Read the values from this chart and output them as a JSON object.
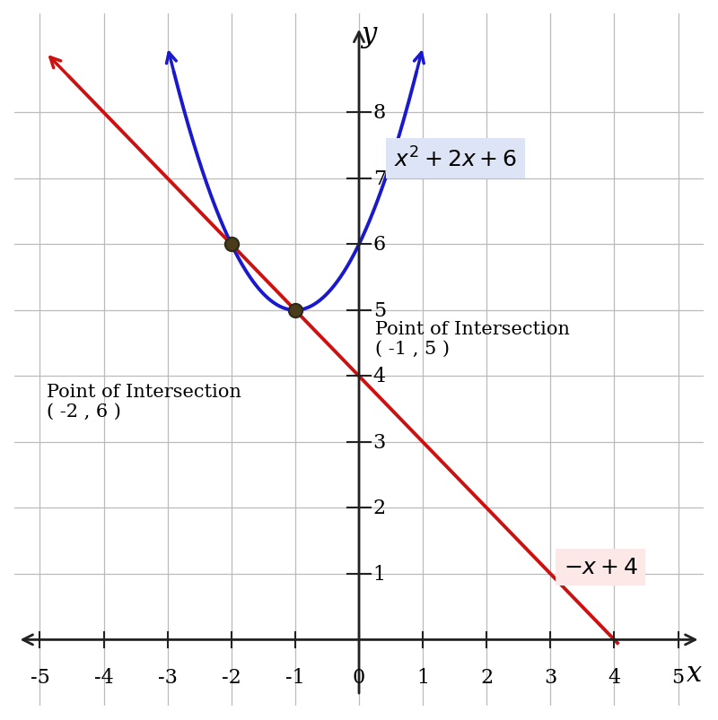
{
  "xlim": [
    -5.4,
    5.4
  ],
  "ylim": [
    -1.0,
    9.5
  ],
  "xdata_lim": [
    -5,
    5
  ],
  "ydata_lim": [
    0,
    9
  ],
  "xticks": [
    -5,
    -4,
    -3,
    -2,
    -1,
    0,
    1,
    2,
    3,
    4,
    5
  ],
  "yticks": [
    1,
    2,
    3,
    4,
    5,
    6,
    7,
    8
  ],
  "xlabel": "x",
  "ylabel": "y",
  "parabola_color": "#1a1acc",
  "line_color": "#cc1111",
  "intersection_color": "#4a3c1a",
  "intersection_edge_color": "#2a2a1a",
  "intersection_points": [
    [
      -2,
      6
    ],
    [
      -1,
      5
    ]
  ],
  "parabola_label": "$x^2 + 2x + 6$",
  "line_label": "$-x + 4$",
  "poi_left_text": "Point of Intersection\n( -2 , 6 )",
  "poi_right_text": "Point of Intersection\n( -1 , 5 )",
  "parabola_box_color": "#dde4f5",
  "line_box_color": "#fde8e8",
  "background_color": "#ffffff",
  "grid_color": "#bbbbbb",
  "tick_color": "#333333",
  "axis_color": "#222222"
}
